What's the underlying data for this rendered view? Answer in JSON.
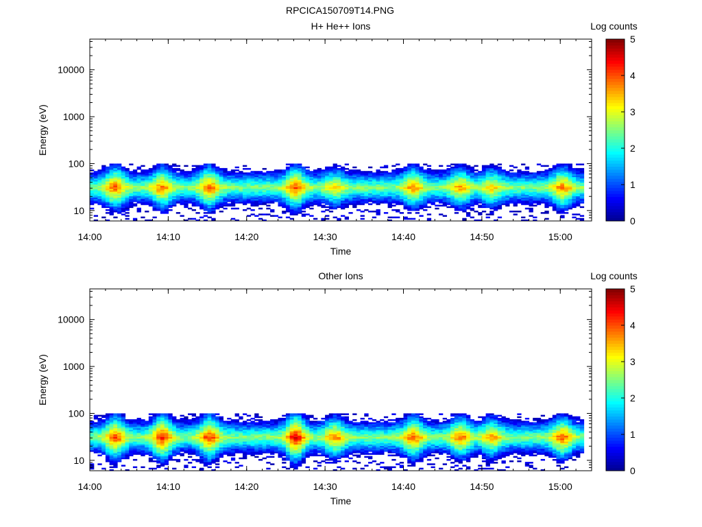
{
  "figure_title": "RPCICA150709T14.PNG",
  "colors": {
    "axis": "#000000",
    "background": "#ffffff",
    "colormap": [
      "#00008f",
      "#0000ff",
      "#0080ff",
      "#00ffff",
      "#80ff80",
      "#ffff00",
      "#ff8000",
      "#ff0000",
      "#800000"
    ]
  },
  "chart_data": [
    {
      "type": "heatmap",
      "title": "H+ He++ Ions",
      "xlabel": "Time",
      "ylabel": "Energy (eV)",
      "y_scale": "log",
      "xlim": [
        "14:00",
        "15:04"
      ],
      "ylim": [
        6,
        45000
      ],
      "x_ticks": [
        "14:00",
        "14:10",
        "14:20",
        "14:30",
        "14:40",
        "14:50",
        "15:00"
      ],
      "y_ticks": [
        "10",
        "100",
        "1000",
        "10000"
      ],
      "colorbar": {
        "label": "Log counts",
        "range": [
          0,
          5
        ],
        "ticks": [
          "0",
          "1",
          "2",
          "3",
          "4",
          "5"
        ]
      },
      "grid": false,
      "peak_energy_eV": 30,
      "energy_band_eV": [
        6,
        100
      ],
      "cells": [
        {
          "time": "14:03",
          "energy": 32,
          "log_counts": 4.0
        },
        {
          "time": "14:09",
          "energy": 32,
          "log_counts": 3.9
        },
        {
          "time": "14:15",
          "energy": 35,
          "log_counts": 4.0
        },
        {
          "time": "14:26",
          "energy": 32,
          "log_counts": 4.1
        },
        {
          "time": "14:31",
          "energy": 35,
          "log_counts": 3.4
        },
        {
          "time": "14:41",
          "energy": 32,
          "log_counts": 3.8
        },
        {
          "time": "14:47",
          "energy": 30,
          "log_counts": 3.7
        },
        {
          "time": "14:51",
          "energy": 30,
          "log_counts": 3.5
        },
        {
          "time": "15:00",
          "energy": 32,
          "log_counts": 3.9
        }
      ]
    },
    {
      "type": "heatmap",
      "title": "Other Ions",
      "xlabel": "Time",
      "ylabel": "Energy (eV)",
      "y_scale": "log",
      "xlim": [
        "14:00",
        "15:04"
      ],
      "ylim": [
        6,
        45000
      ],
      "x_ticks": [
        "14:00",
        "14:10",
        "14:20",
        "14:30",
        "14:40",
        "14:50",
        "15:00"
      ],
      "y_ticks": [
        "10",
        "100",
        "1000",
        "10000"
      ],
      "colorbar": {
        "label": "Log counts",
        "range": [
          0,
          5
        ],
        "ticks": [
          "0",
          "1",
          "2",
          "3",
          "4",
          "5"
        ]
      },
      "grid": false,
      "peak_energy_eV": 30,
      "energy_band_eV": [
        6,
        100
      ],
      "cells": [
        {
          "time": "14:03",
          "energy": 32,
          "log_counts": 4.1
        },
        {
          "time": "14:09",
          "energy": 35,
          "log_counts": 4.3
        },
        {
          "time": "14:15",
          "energy": 40,
          "log_counts": 4.2
        },
        {
          "time": "14:26",
          "energy": 35,
          "log_counts": 4.5
        },
        {
          "time": "14:31",
          "energy": 40,
          "log_counts": 3.8
        },
        {
          "time": "14:41",
          "energy": 35,
          "log_counts": 4.0
        },
        {
          "time": "14:47",
          "energy": 32,
          "log_counts": 3.9
        },
        {
          "time": "14:51",
          "energy": 30,
          "log_counts": 3.7
        },
        {
          "time": "15:00",
          "energy": 35,
          "log_counts": 4.0
        }
      ]
    }
  ]
}
